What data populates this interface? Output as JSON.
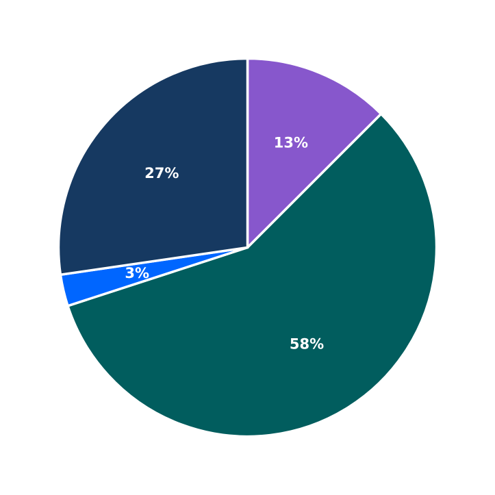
{
  "chart_data": {
    "type": "pie",
    "start_angle_deg": 90,
    "direction": "clockwise",
    "slices": [
      {
        "label": "13%",
        "value": 12.5,
        "color": "#8757CC"
      },
      {
        "label": "58%",
        "value": 57.5,
        "color": "#015D5E"
      },
      {
        "label": "3%",
        "value": 2.7,
        "color": "#0066FF"
      },
      {
        "label": "27%",
        "value": 27.3,
        "color": "#163961"
      }
    ]
  }
}
